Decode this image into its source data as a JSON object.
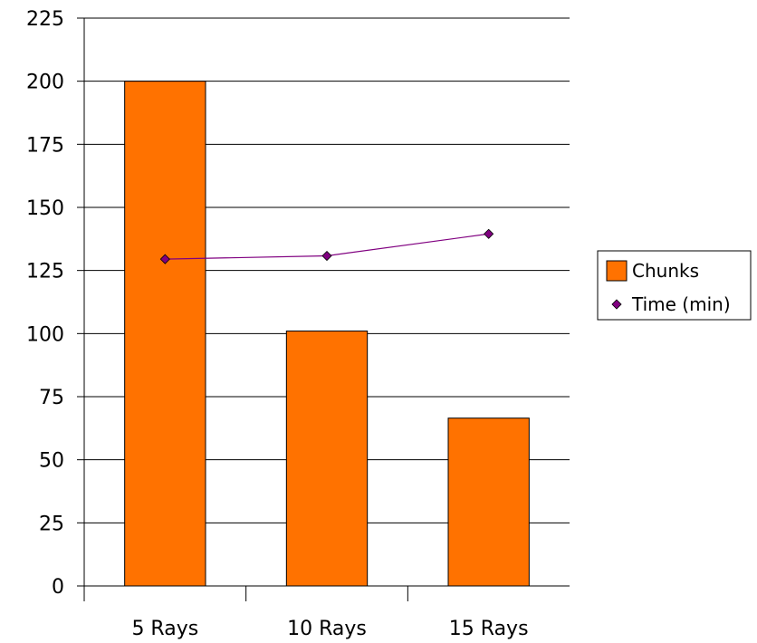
{
  "chart_data": {
    "type": "bar",
    "categories": [
      "5 Rays",
      "10 Rays",
      "15 Rays"
    ],
    "series": [
      {
        "name": "Chunks",
        "type": "bar",
        "values": [
          200,
          101,
          66.5
        ],
        "color": "#ff7200"
      },
      {
        "name": "Time (min)",
        "type": "line",
        "marker": "diamond",
        "values": [
          129.5,
          130.8,
          139.5
        ],
        "color": "#800080"
      }
    ],
    "title": "",
    "xlabel": "",
    "ylabel": "",
    "ylim": [
      0,
      225
    ],
    "yticks": [
      0,
      25,
      50,
      75,
      100,
      125,
      150,
      175,
      200,
      225
    ],
    "grid": true,
    "legend": "right"
  }
}
